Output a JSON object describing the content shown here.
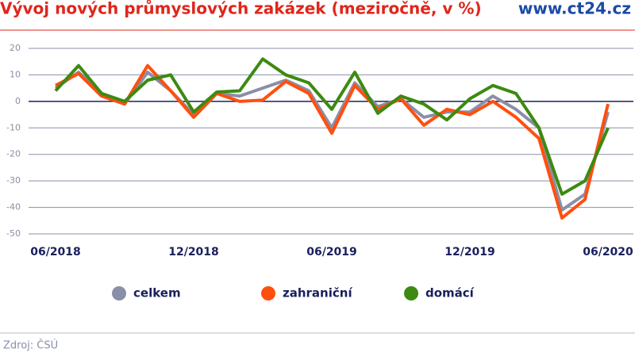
{
  "chart_data": {
    "type": "line",
    "title": "Vývoj nových průmyslových zakázek (meziročně, v %)",
    "brand": "www.ct24.cz",
    "source": "Zdroj: ČSÚ",
    "categories": [
      "06/2018",
      null,
      null,
      null,
      null,
      null,
      "12/2018",
      null,
      null,
      null,
      null,
      null,
      "06/2019",
      null,
      null,
      null,
      null,
      null,
      "12/2019",
      null,
      null,
      null,
      null,
      null,
      "06/2020"
    ],
    "series": [
      {
        "name": "celkem",
        "color": "#8a8fa8",
        "values": [
          5,
          11,
          3,
          -1,
          11,
          4,
          -5,
          3,
          2,
          5,
          8,
          4,
          -10,
          7,
          -2,
          1,
          -6,
          -4,
          -4,
          2,
          -3,
          -10,
          -41,
          -35,
          -4
        ]
      },
      {
        "name": "zahraniční",
        "color": "#ff4f0f",
        "values": [
          6,
          10.5,
          2,
          -1,
          13.5,
          4,
          -6,
          3,
          0,
          0.5,
          7.5,
          3,
          -12,
          6,
          -3,
          1,
          -9,
          -3,
          -5,
          0,
          -6,
          -14,
          -44,
          -37,
          -1
        ]
      },
      {
        "name": "domácí",
        "color": "#3c8a12",
        "values": [
          4,
          13.5,
          3,
          0,
          8,
          10,
          -4,
          3.5,
          4,
          16,
          10,
          7,
          -3,
          11,
          -4.5,
          2,
          -1,
          -7,
          1,
          6,
          3,
          -10,
          -35,
          -30,
          -10
        ]
      }
    ],
    "ylim": [
      -50,
      20
    ],
    "yticks": [
      -50,
      -40,
      -30,
      -20,
      -10,
      0,
      10,
      20
    ],
    "grid": true
  }
}
